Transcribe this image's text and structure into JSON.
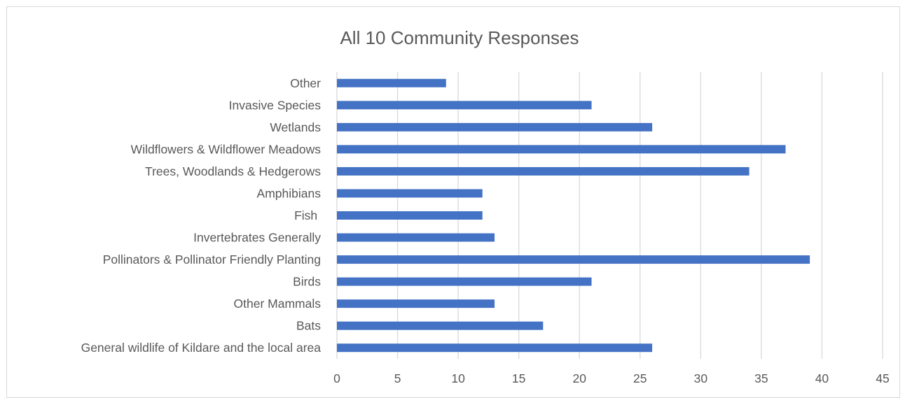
{
  "chart_data": {
    "type": "bar",
    "orientation": "horizontal",
    "title": "All 10 Community Responses",
    "categories": [
      "Other",
      "Invasive Species",
      "Wetlands",
      "Wildflowers & Wildflower Meadows",
      "Trees, Woodlands & Hedgerows",
      "Amphibians",
      "Fish ",
      "Invertebrates Generally",
      "Pollinators & Pollinator Friendly Planting",
      "Birds",
      "Other Mammals",
      "Bats",
      "General wildlife of Kildare and the local area"
    ],
    "values": [
      9,
      21,
      26,
      37,
      34,
      12,
      12,
      13,
      39,
      21,
      13,
      17,
      26
    ],
    "xlim": [
      0,
      45
    ],
    "xticks": [
      "0",
      "5",
      "10",
      "15",
      "20",
      "25",
      "30",
      "35",
      "40",
      "45"
    ],
    "xlabel": "",
    "ylabel": "",
    "grid": true,
    "legend": "none",
    "bar_color": "#4472c4"
  }
}
